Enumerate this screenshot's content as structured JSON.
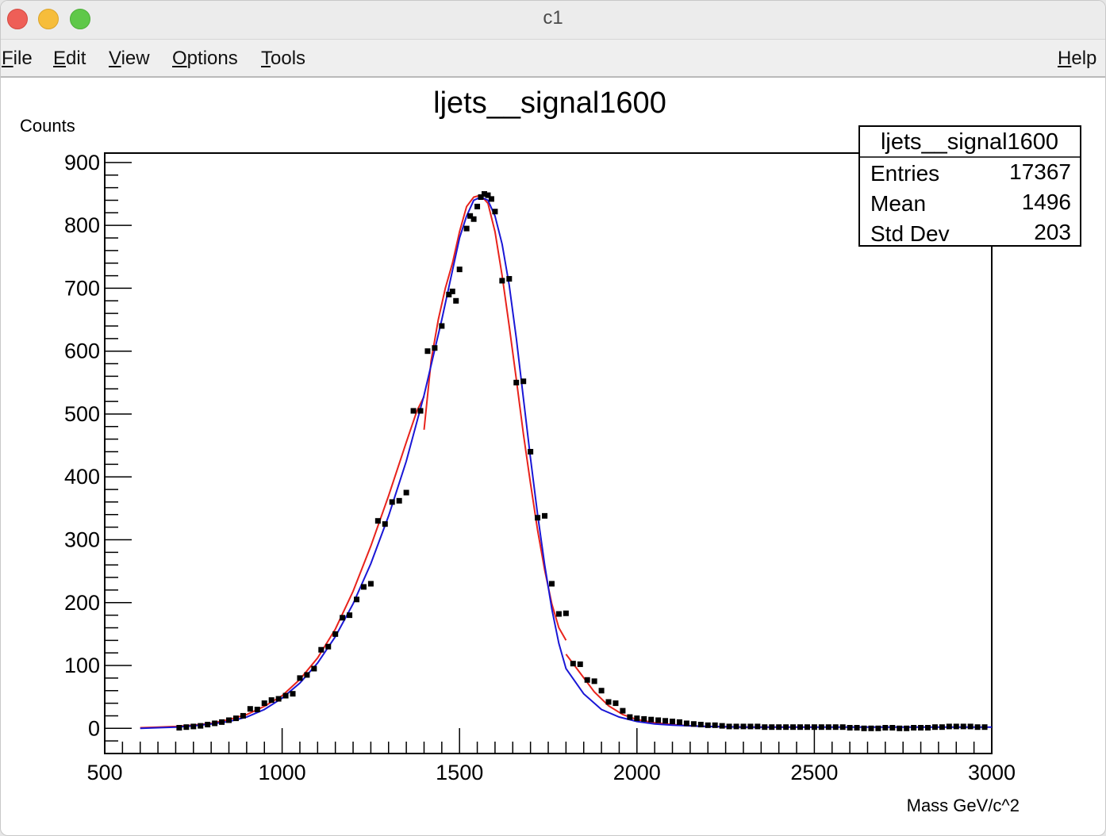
{
  "window": {
    "title": "c1"
  },
  "menu": {
    "file": {
      "mnemonic": "F",
      "rest": "ile"
    },
    "edit": {
      "mnemonic": "E",
      "rest": "dit"
    },
    "view": {
      "mnemonic": "V",
      "rest": "iew"
    },
    "options": {
      "mnemonic": "O",
      "rest": "ptions"
    },
    "tools": {
      "mnemonic": "T",
      "rest": "ools"
    },
    "help": {
      "mnemonic": "H",
      "rest": "elp"
    }
  },
  "stats": {
    "title": "ljets__signal1600",
    "entries_label": "Entries",
    "entries_value": "17367",
    "mean_label": "Mean",
    "mean_value": "1496",
    "stddev_label": "Std Dev",
    "stddev_value": "203"
  },
  "chart_data": {
    "type": "scatter",
    "title": "ljets__signal1600",
    "xlabel": "Mass GeV/c^2",
    "ylabel": "Counts",
    "xlim": [
      500,
      3000
    ],
    "ylim": [
      -40,
      915
    ],
    "x_ticks": [
      500,
      1000,
      1500,
      2000,
      2500,
      3000
    ],
    "x_tick_labels": [
      "500",
      "1000",
      "1500",
      "2000",
      "2500",
      "3000"
    ],
    "y_ticks": [
      0,
      100,
      200,
      300,
      400,
      500,
      600,
      700,
      800,
      900
    ],
    "y_tick_labels": [
      "0",
      "100",
      "200",
      "300",
      "400",
      "500",
      "600",
      "700",
      "800",
      "900"
    ],
    "grid": false,
    "legend": "stats box top-right",
    "colors": {
      "points": "#000000",
      "fit_red": "#e8231c",
      "fit_blue": "#1a17d6"
    },
    "points": [
      [
        710,
        1
      ],
      [
        730,
        2
      ],
      [
        750,
        3
      ],
      [
        770,
        4
      ],
      [
        790,
        6
      ],
      [
        810,
        8
      ],
      [
        830,
        10
      ],
      [
        850,
        13
      ],
      [
        870,
        16
      ],
      [
        890,
        20
      ],
      [
        910,
        31
      ],
      [
        930,
        30
      ],
      [
        950,
        40
      ],
      [
        970,
        45
      ],
      [
        990,
        47
      ],
      [
        1010,
        52
      ],
      [
        1030,
        55
      ],
      [
        1050,
        80
      ],
      [
        1070,
        85
      ],
      [
        1090,
        95
      ],
      [
        1110,
        125
      ],
      [
        1130,
        130
      ],
      [
        1150,
        150
      ],
      [
        1170,
        176
      ],
      [
        1190,
        180
      ],
      [
        1210,
        205
      ],
      [
        1230,
        225
      ],
      [
        1250,
        230
      ],
      [
        1270,
        330
      ],
      [
        1290,
        325
      ],
      [
        1310,
        360
      ],
      [
        1330,
        362
      ],
      [
        1350,
        375
      ],
      [
        1370,
        505
      ],
      [
        1390,
        505
      ],
      [
        1410,
        600
      ],
      [
        1430,
        605
      ],
      [
        1450,
        640
      ],
      [
        1470,
        690
      ],
      [
        1480,
        695
      ],
      [
        1490,
        680
      ],
      [
        1500,
        730
      ],
      [
        1520,
        795
      ],
      [
        1530,
        815
      ],
      [
        1540,
        810
      ],
      [
        1550,
        830
      ],
      [
        1560,
        845
      ],
      [
        1570,
        850
      ],
      [
        1580,
        848
      ],
      [
        1590,
        842
      ],
      [
        1600,
        822
      ],
      [
        1620,
        712
      ],
      [
        1640,
        715
      ],
      [
        1660,
        550
      ],
      [
        1680,
        552
      ],
      [
        1700,
        440
      ],
      [
        1720,
        335
      ],
      [
        1740,
        338
      ],
      [
        1760,
        230
      ],
      [
        1780,
        182
      ],
      [
        1800,
        183
      ],
      [
        1820,
        103
      ],
      [
        1840,
        102
      ],
      [
        1860,
        77
      ],
      [
        1880,
        75
      ],
      [
        1900,
        60
      ],
      [
        1920,
        42
      ],
      [
        1940,
        40
      ],
      [
        1960,
        28
      ],
      [
        1980,
        18
      ],
      [
        2000,
        16
      ],
      [
        2020,
        15
      ],
      [
        2040,
        14
      ],
      [
        2060,
        13
      ],
      [
        2080,
        12
      ],
      [
        2100,
        11
      ],
      [
        2120,
        10
      ],
      [
        2140,
        8
      ],
      [
        2160,
        7
      ],
      [
        2180,
        6
      ],
      [
        2200,
        5
      ],
      [
        2220,
        5
      ],
      [
        2240,
        4
      ],
      [
        2260,
        3
      ],
      [
        2280,
        3
      ],
      [
        2300,
        3
      ],
      [
        2320,
        3
      ],
      [
        2340,
        3
      ],
      [
        2360,
        2
      ],
      [
        2380,
        2
      ],
      [
        2400,
        2
      ],
      [
        2420,
        2
      ],
      [
        2440,
        2
      ],
      [
        2460,
        2
      ],
      [
        2480,
        2
      ],
      [
        2500,
        2
      ],
      [
        2520,
        2
      ],
      [
        2540,
        2
      ],
      [
        2560,
        2
      ],
      [
        2580,
        2
      ],
      [
        2600,
        1
      ],
      [
        2620,
        1
      ],
      [
        2640,
        0
      ],
      [
        2660,
        0
      ],
      [
        2680,
        0
      ],
      [
        2700,
        1
      ],
      [
        2720,
        1
      ],
      [
        2740,
        0
      ],
      [
        2760,
        0
      ],
      [
        2780,
        1
      ],
      [
        2800,
        1
      ],
      [
        2820,
        1
      ],
      [
        2840,
        2
      ],
      [
        2860,
        2
      ],
      [
        2880,
        3
      ],
      [
        2900,
        3
      ],
      [
        2920,
        3
      ],
      [
        2940,
        3
      ],
      [
        2960,
        2
      ],
      [
        2980,
        2
      ]
    ],
    "series": [
      {
        "color": "#e8231c",
        "segments": [
          {
            "x": [
              600,
              650,
              700,
              750,
              800,
              850,
              900,
              950,
              1000,
              1050,
              1100,
              1150,
              1200,
              1250,
              1300,
              1350,
              1380,
              1400
            ],
            "y": [
              1,
              2,
              3,
              5,
              8,
              14,
              22,
              35,
              52,
              78,
              112,
              158,
              218,
              290,
              370,
              455,
              505,
              528
            ]
          },
          {
            "x": [
              1400,
              1420,
              1440,
              1460,
              1480,
              1500,
              1520,
              1540,
              1560,
              1580,
              1600,
              1620,
              1640,
              1660,
              1680,
              1700,
              1720,
              1740,
              1760,
              1780,
              1800
            ],
            "y": [
              475,
              585,
              650,
              700,
              740,
              790,
              830,
              845,
              848,
              835,
              790,
              720,
              640,
              555,
              468,
              390,
              315,
              252,
              198,
              160,
              140
            ]
          },
          {
            "x": [
              1800,
              1840,
              1880,
              1920,
              1960,
              2000,
              2050,
              2100,
              2150,
              2200,
              2300,
              2400,
              2500
            ],
            "y": [
              118,
              88,
              58,
              36,
              22,
              14,
              9,
              6,
              4,
              3,
              2,
              2,
              2
            ]
          }
        ]
      },
      {
        "color": "#1a17d6",
        "segments": [
          {
            "x": [
              600,
              650,
              700,
              750,
              800,
              850,
              900,
              950,
              1000,
              1050,
              1100,
              1150,
              1200,
              1250,
              1300,
              1350,
              1400,
              1450,
              1500,
              1520,
              1540,
              1560,
              1580,
              1600,
              1620,
              1640,
              1660,
              1680,
              1700,
              1720,
              1740,
              1760,
              1780,
              1800,
              1850,
              1900,
              1950,
              2000,
              2050,
              2100,
              2150,
              2200,
              2300,
              2400,
              2500,
              2600,
              2700,
              2800,
              2900,
              3000
            ],
            "y": [
              0,
              1,
              2,
              4,
              7,
              11,
              18,
              30,
              48,
              72,
              104,
              146,
              198,
              262,
              338,
              425,
              530,
              650,
              780,
              815,
              840,
              845,
              840,
              815,
              770,
              705,
              620,
              525,
              430,
              340,
              260,
              190,
              135,
              95,
              55,
              30,
              18,
              11,
              7,
              5,
              4,
              3,
              2,
              2,
              2,
              2,
              2,
              2,
              2,
              2
            ]
          }
        ]
      }
    ]
  }
}
